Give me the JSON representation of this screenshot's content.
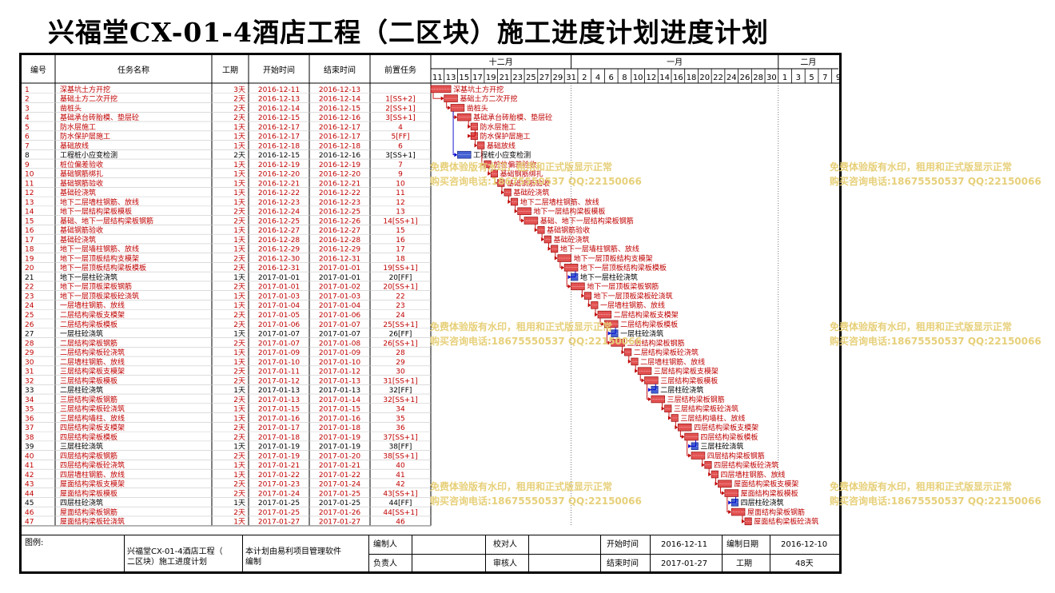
{
  "title": "兴福堂CX-01-4酒店工程（二区块）施工进度计划进度计划",
  "columns": [
    "编号",
    "任务名称",
    "工期",
    "开始时间",
    "结束时间",
    "前置任务"
  ],
  "months": [
    {
      "label": "十二月"
    },
    {
      "label": "一月"
    },
    {
      "label": "二月"
    }
  ],
  "day_labels": [
    "11",
    "13",
    "15",
    "17",
    "19",
    "21",
    "23",
    "25",
    "27",
    "29",
    "31",
    "2",
    "4",
    "6",
    "8",
    "10",
    "12",
    "14",
    "16",
    "18",
    "20",
    "22",
    "24",
    "26",
    "28",
    "30",
    "1",
    "3",
    "5",
    "7",
    "9"
  ],
  "colors": {
    "critical": "#c00000",
    "normal": "#000000",
    "bar_critical": "#e04040",
    "bar_normal": "#3050d0",
    "link": "#0000cc",
    "grid": "#c8c8c8"
  },
  "watermark": {
    "line1": "免费体验版有水印，租用和正式版显示正常",
    "line2": "购买咨询电话:18675550537 QQ:22150066"
  },
  "footer": {
    "legend_label": "图例:",
    "project_name": "兴福堂CX-01-4酒店工程（\n二区块）施工进度计划",
    "software_note": "本计划由易利项目管理软件\n编制",
    "editor_label": "编制人",
    "checker_label": "校对人",
    "owner_label": "负责人",
    "reviewer_label": "审核人",
    "start_label": "开始时间",
    "start_value": "2016-12-11",
    "end_label": "结束时间",
    "end_value": "2017-01-27",
    "compile_label": "编制日期",
    "compile_value": "2016-12-10",
    "duration_label": "工期",
    "duration_value": "48天"
  },
  "chart_data": {
    "type": "gantt",
    "title": "兴福堂CX-01-4酒店工程（二区块）施工进度计划进度计划",
    "x_start": "2016-12-11",
    "x_end": "2017-02-09",
    "tasks": [
      {
        "id": "1",
        "name": "深基坑土方开挖",
        "duration": "3天",
        "start": "2016-12-11",
        "end": "2016-12-13",
        "pred": "",
        "critical": true
      },
      {
        "id": "2",
        "name": "基础土方二次开挖",
        "duration": "2天",
        "start": "2016-12-13",
        "end": "2016-12-14",
        "pred": "1[SS+2]",
        "critical": true
      },
      {
        "id": "3",
        "name": "凿桩头",
        "duration": "2天",
        "start": "2016-12-14",
        "end": "2016-12-15",
        "pred": "2[SS+1]",
        "critical": true
      },
      {
        "id": "4",
        "name": "基础承台砖胎模、垫层砼",
        "duration": "2天",
        "start": "2016-12-15",
        "end": "2016-12-16",
        "pred": "3[SS+1]",
        "critical": true
      },
      {
        "id": "5",
        "name": "防水层施工",
        "duration": "1天",
        "start": "2016-12-17",
        "end": "2016-12-17",
        "pred": "4",
        "critical": true
      },
      {
        "id": "6",
        "name": "防水保护层施工",
        "duration": "1天",
        "start": "2016-12-17",
        "end": "2016-12-17",
        "pred": "5[FF]",
        "critical": true
      },
      {
        "id": "7",
        "name": "基础放线",
        "duration": "1天",
        "start": "2016-12-18",
        "end": "2016-12-18",
        "pred": "6",
        "critical": true
      },
      {
        "id": "8",
        "name": "工程桩小应变检测",
        "duration": "2天",
        "start": "2016-12-15",
        "end": "2016-12-16",
        "pred": "3[SS+1]",
        "critical": false
      },
      {
        "id": "9",
        "name": "桩位偏差验收",
        "duration": "1天",
        "start": "2016-12-19",
        "end": "2016-12-19",
        "pred": "7",
        "critical": true
      },
      {
        "id": "10",
        "name": "基础钢筋绑扎",
        "duration": "1天",
        "start": "2016-12-20",
        "end": "2016-12-20",
        "pred": "9",
        "critical": true
      },
      {
        "id": "11",
        "name": "基础钢筋验收",
        "duration": "1天",
        "start": "2016-12-21",
        "end": "2016-12-21",
        "pred": "10",
        "critical": true
      },
      {
        "id": "12",
        "name": "基础砼浇筑",
        "duration": "1天",
        "start": "2016-12-22",
        "end": "2016-12-22",
        "pred": "11",
        "critical": true
      },
      {
        "id": "13",
        "name": "地下二层墙柱钢筋、放线",
        "duration": "1天",
        "start": "2016-12-23",
        "end": "2016-12-23",
        "pred": "12",
        "critical": true
      },
      {
        "id": "14",
        "name": "地下一层结构梁板模板",
        "duration": "2天",
        "start": "2016-12-24",
        "end": "2016-12-25",
        "pred": "13",
        "critical": true
      },
      {
        "id": "15",
        "name": "基础、地下一层结构梁板钢筋",
        "duration": "2天",
        "start": "2016-12-25",
        "end": "2016-12-26",
        "pred": "14[SS+1]",
        "critical": true
      },
      {
        "id": "16",
        "name": "基础钢筋验收",
        "duration": "1天",
        "start": "2016-12-27",
        "end": "2016-12-27",
        "pred": "15",
        "critical": true
      },
      {
        "id": "17",
        "name": "基础砼浇筑",
        "duration": "1天",
        "start": "2016-12-28",
        "end": "2016-12-28",
        "pred": "16",
        "critical": true
      },
      {
        "id": "18",
        "name": "地下一层墙柱钢筋、放线",
        "duration": "1天",
        "start": "2016-12-29",
        "end": "2016-12-29",
        "pred": "17",
        "critical": true
      },
      {
        "id": "19",
        "name": "地下一层顶板结构支模架",
        "duration": "2天",
        "start": "2016-12-30",
        "end": "2016-12-31",
        "pred": "18",
        "critical": true
      },
      {
        "id": "20",
        "name": "地下一层顶板结构梁板模板",
        "duration": "2天",
        "start": "2016-12-31",
        "end": "2017-01-01",
        "pred": "19[SS+1]",
        "critical": true
      },
      {
        "id": "21",
        "name": "地下一层柱砼浇筑",
        "duration": "1天",
        "start": "2017-01-01",
        "end": "2017-01-01",
        "pred": "20[FF]",
        "critical": false
      },
      {
        "id": "22",
        "name": "地下一层顶板梁板钢筋",
        "duration": "2天",
        "start": "2017-01-01",
        "end": "2017-01-02",
        "pred": "20[SS+1]",
        "critical": true
      },
      {
        "id": "23",
        "name": "地下一层顶板梁板砼浇筑",
        "duration": "1天",
        "start": "2017-01-03",
        "end": "2017-01-03",
        "pred": "22",
        "critical": true
      },
      {
        "id": "24",
        "name": "一层墙柱钢筋、放线",
        "duration": "1天",
        "start": "2017-01-04",
        "end": "2017-01-04",
        "pred": "23",
        "critical": true
      },
      {
        "id": "25",
        "name": "二层结构梁板支模架",
        "duration": "2天",
        "start": "2017-01-05",
        "end": "2017-01-06",
        "pred": "24",
        "critical": true
      },
      {
        "id": "26",
        "name": "二层结构梁板模板",
        "duration": "2天",
        "start": "2017-01-06",
        "end": "2017-01-07",
        "pred": "25[SS+1]",
        "critical": true
      },
      {
        "id": "27",
        "name": "一层柱砼浇筑",
        "duration": "1天",
        "start": "2017-01-07",
        "end": "2017-01-07",
        "pred": "26[FF]",
        "critical": false
      },
      {
        "id": "28",
        "name": "二层结构梁板钢筋",
        "duration": "2天",
        "start": "2017-01-07",
        "end": "2017-01-08",
        "pred": "26[SS+1]",
        "critical": true
      },
      {
        "id": "29",
        "name": "二层结构梁板砼浇筑",
        "duration": "1天",
        "start": "2017-01-09",
        "end": "2017-01-09",
        "pred": "28",
        "critical": true
      },
      {
        "id": "30",
        "name": "二层墙柱钢筋、放线",
        "duration": "1天",
        "start": "2017-01-10",
        "end": "2017-01-10",
        "pred": "29",
        "critical": true
      },
      {
        "id": "31",
        "name": "三层结构梁板支模架",
        "duration": "2天",
        "start": "2017-01-11",
        "end": "2017-01-12",
        "pred": "30",
        "critical": true
      },
      {
        "id": "32",
        "name": "三层结构梁板模板",
        "duration": "2天",
        "start": "2017-01-12",
        "end": "2017-01-13",
        "pred": "31[SS+1]",
        "critical": true
      },
      {
        "id": "33",
        "name": "二层柱砼浇筑",
        "duration": "1天",
        "start": "2017-01-13",
        "end": "2017-01-13",
        "pred": "32[FF]",
        "critical": false
      },
      {
        "id": "34",
        "name": "三层结构梁板钢筋",
        "duration": "2天",
        "start": "2017-01-13",
        "end": "2017-01-14",
        "pred": "32[SS+1]",
        "critical": true
      },
      {
        "id": "35",
        "name": "三层结构梁板砼浇筑",
        "duration": "1天",
        "start": "2017-01-15",
        "end": "2017-01-15",
        "pred": "34",
        "critical": true
      },
      {
        "id": "36",
        "name": "三层结构墙柱、放线",
        "duration": "1天",
        "start": "2017-01-16",
        "end": "2017-01-16",
        "pred": "35",
        "critical": true
      },
      {
        "id": "37",
        "name": "四层结构梁板支模架",
        "duration": "2天",
        "start": "2017-01-17",
        "end": "2017-01-18",
        "pred": "36",
        "critical": true
      },
      {
        "id": "38",
        "name": "四层结构梁板模板",
        "duration": "2天",
        "start": "2017-01-18",
        "end": "2017-01-19",
        "pred": "37[SS+1]",
        "critical": true
      },
      {
        "id": "39",
        "name": "三层柱砼浇筑",
        "duration": "1天",
        "start": "2017-01-19",
        "end": "2017-01-19",
        "pred": "38[FF]",
        "critical": false
      },
      {
        "id": "40",
        "name": "四层结构梁板钢筋",
        "duration": "2天",
        "start": "2017-01-19",
        "end": "2017-01-20",
        "pred": "38[SS+1]",
        "critical": true
      },
      {
        "id": "41",
        "name": "四层结构梁板砼浇筑",
        "duration": "1天",
        "start": "2017-01-21",
        "end": "2017-01-21",
        "pred": "40",
        "critical": true
      },
      {
        "id": "42",
        "name": "四层墙柱钢筋、放线",
        "duration": "1天",
        "start": "2017-01-22",
        "end": "2017-01-22",
        "pred": "41",
        "critical": true
      },
      {
        "id": "43",
        "name": "屋面结构梁板支模架",
        "duration": "2天",
        "start": "2017-01-23",
        "end": "2017-01-24",
        "pred": "42",
        "critical": true
      },
      {
        "id": "44",
        "name": "屋面结构梁板模板",
        "duration": "2天",
        "start": "2017-01-24",
        "end": "2017-01-25",
        "pred": "43[SS+1]",
        "critical": true
      },
      {
        "id": "45",
        "name": "四层柱砼浇筑",
        "duration": "1天",
        "start": "2017-01-25",
        "end": "2017-01-25",
        "pred": "44[FF]",
        "critical": false
      },
      {
        "id": "46",
        "name": "屋面结构梁板钢筋",
        "duration": "2天",
        "start": "2017-01-25",
        "end": "2017-01-26",
        "pred": "44[SS+1]",
        "critical": true
      },
      {
        "id": "47",
        "name": "屋面结构梁板砼浇筑",
        "duration": "1天",
        "start": "2017-01-27",
        "end": "2017-01-27",
        "pred": "46",
        "critical": true
      }
    ]
  }
}
